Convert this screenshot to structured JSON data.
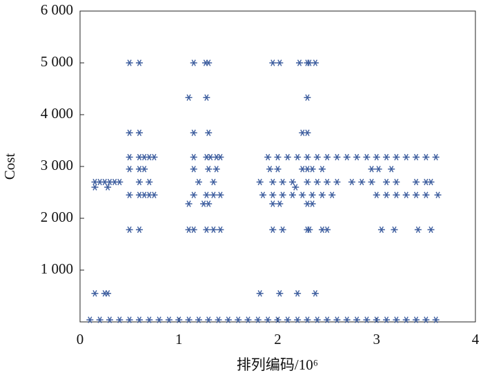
{
  "chart_data": {
    "type": "scatter",
    "x_label": "排列编码/10⁶",
    "y_label": "Cost",
    "color": "#3f5f9f",
    "xlim": [
      0,
      4
    ],
    "ylim": [
      0,
      6000
    ],
    "xticks": [
      0,
      1,
      2,
      3,
      4
    ],
    "yticks": [
      {
        "value": 1000,
        "label": "1 000"
      },
      {
        "value": 2000,
        "label": "2 000"
      },
      {
        "value": 3000,
        "label": "3 000"
      },
      {
        "value": 4000,
        "label": "4 000"
      },
      {
        "value": 5000,
        "label": "5 000"
      },
      {
        "value": 6000,
        "label": "6 000"
      }
    ],
    "x": [
      0.1,
      0.2,
      0.3,
      0.4,
      0.5,
      0.6,
      0.7,
      0.8,
      0.9,
      1.0,
      1.1,
      1.2,
      1.3,
      1.4,
      1.5,
      1.6,
      1.7,
      1.8,
      1.9,
      2.0,
      2.1,
      2.2,
      2.3,
      2.4,
      2.5,
      2.6,
      2.7,
      2.8,
      2.9,
      3.0,
      3.1,
      3.2,
      3.3,
      3.4,
      3.5,
      3.6,
      0.15,
      0.25,
      0.28,
      1.82,
      2.02,
      2.2,
      2.38,
      0.15,
      0.28,
      0.15,
      0.2,
      0.25,
      0.3,
      0.35,
      0.4,
      0.5,
      0.6,
      0.5,
      0.6,
      0.5,
      0.6,
      0.65,
      0.7,
      0.75,
      0.5,
      0.6,
      0.65,
      0.6,
      0.7,
      0.5,
      0.6,
      0.65,
      0.7,
      0.75,
      0.5,
      0.6,
      1.15,
      1.27,
      1.3,
      1.1,
      1.28,
      1.15,
      1.3,
      1.15,
      1.28,
      1.32,
      1.38,
      1.42,
      1.15,
      1.3,
      1.38,
      1.2,
      1.35,
      1.15,
      1.28,
      1.35,
      1.42,
      1.1,
      1.25,
      1.3,
      1.1,
      1.15,
      1.28,
      1.35,
      1.42,
      1.95,
      2.02,
      2.22,
      2.3,
      2.32,
      2.38,
      2.3,
      2.25,
      2.3,
      1.9,
      2.0,
      2.1,
      2.2,
      2.3,
      2.4,
      2.5,
      2.6,
      2.7,
      2.8,
      2.9,
      3.0,
      3.1,
      3.2,
      3.3,
      3.4,
      3.5,
      3.6,
      1.92,
      2.0,
      2.25,
      2.3,
      2.35,
      2.45,
      2.95,
      3.02,
      3.15,
      1.82,
      1.95,
      2.05,
      2.15,
      2.3,
      2.4,
      2.5,
      2.6,
      2.75,
      2.85,
      2.95,
      3.1,
      3.2,
      3.4,
      3.5,
      3.55,
      2.18,
      1.85,
      1.95,
      2.05,
      2.15,
      2.25,
      2.35,
      2.45,
      2.55,
      3.0,
      3.1,
      3.2,
      3.3,
      3.4,
      3.5,
      3.62,
      1.95,
      2.02,
      2.3,
      2.35,
      1.95,
      2.05,
      2.3,
      2.32,
      2.45,
      2.5,
      3.05,
      3.18,
      3.42,
      3.55
    ],
    "values": [
      40,
      40,
      40,
      40,
      40,
      40,
      40,
      40,
      40,
      40,
      40,
      40,
      40,
      40,
      40,
      40,
      40,
      40,
      40,
      40,
      40,
      40,
      40,
      40,
      40,
      40,
      40,
      40,
      40,
      40,
      40,
      40,
      40,
      40,
      40,
      40,
      550,
      550,
      550,
      550,
      550,
      550,
      550,
      2600,
      2600,
      2700,
      2700,
      2700,
      2700,
      2700,
      2700,
      5000,
      5000,
      3650,
      3650,
      3180,
      3180,
      3180,
      3180,
      3180,
      2950,
      2950,
      2950,
      2700,
      2700,
      2450,
      2450,
      2450,
      2450,
      2450,
      1780,
      1780,
      5000,
      5000,
      5000,
      4330,
      4330,
      3650,
      3650,
      3180,
      3180,
      3180,
      3180,
      3180,
      2950,
      2950,
      2950,
      2700,
      2700,
      2450,
      2450,
      2450,
      2450,
      2280,
      2280,
      2280,
      1780,
      1780,
      1780,
      1780,
      1780,
      5000,
      5000,
      5000,
      5000,
      5000,
      5000,
      4330,
      3650,
      3650,
      3180,
      3180,
      3180,
      3180,
      3180,
      3180,
      3180,
      3180,
      3180,
      3180,
      3180,
      3180,
      3180,
      3180,
      3180,
      3180,
      3180,
      3180,
      2950,
      2950,
      2950,
      2950,
      2950,
      2950,
      2950,
      2950,
      2950,
      2700,
      2700,
      2700,
      2700,
      2700,
      2700,
      2700,
      2700,
      2700,
      2700,
      2700,
      2700,
      2700,
      2700,
      2700,
      2700,
      2600,
      2450,
      2450,
      2450,
      2450,
      2450,
      2450,
      2450,
      2450,
      2450,
      2450,
      2450,
      2450,
      2450,
      2450,
      2450,
      2280,
      2280,
      2280,
      2280,
      1780,
      1780,
      1780,
      1780,
      1780,
      1780,
      1780,
      1780,
      1780,
      1780
    ]
  }
}
